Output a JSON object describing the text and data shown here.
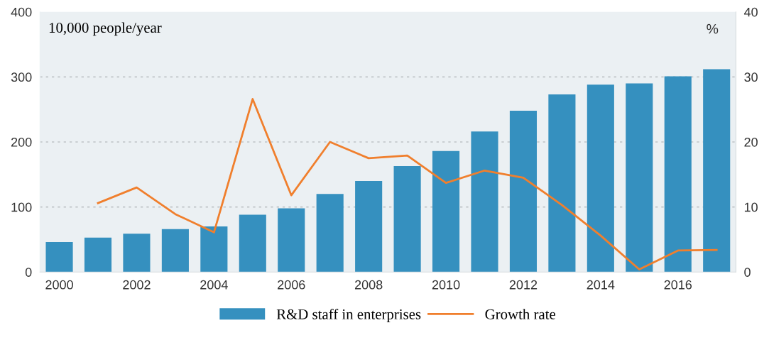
{
  "chart_data": {
    "type": "bar",
    "categories": [
      "2000",
      null,
      "2002",
      null,
      "2004",
      null,
      "2006",
      null,
      "2008",
      null,
      "2010",
      null,
      "2012",
      null,
      "2014",
      null,
      "2016",
      null
    ],
    "ylabel": "10,000 people/year",
    "y2label": "%",
    "series": [
      {
        "name": "R&D staff in enterprises",
        "color": "#3590bf",
        "values": [
          46,
          53,
          59,
          66,
          70,
          88,
          98,
          120,
          140,
          163,
          186,
          216,
          248,
          273,
          288,
          290,
          301,
          312
        ]
      },
      {
        "name": "Growth rate",
        "type": "line",
        "axis": "y2",
        "color": "#f07f2d",
        "values": [
          null,
          10.6,
          13.0,
          8.9,
          6.1,
          26.6,
          11.8,
          20.0,
          17.5,
          17.9,
          13.7,
          15.6,
          14.5,
          10.3,
          5.6,
          0.4,
          3.3,
          3.4
        ]
      }
    ],
    "ylim": [
      0,
      400
    ],
    "yticks": [
      0,
      100,
      200,
      300,
      400
    ],
    "y2lim": [
      0,
      40
    ],
    "y2ticks": [
      0,
      10,
      20,
      30,
      40
    ],
    "grid": "y",
    "legend": "bottom",
    "marker": "none",
    "line_style": "solid"
  }
}
